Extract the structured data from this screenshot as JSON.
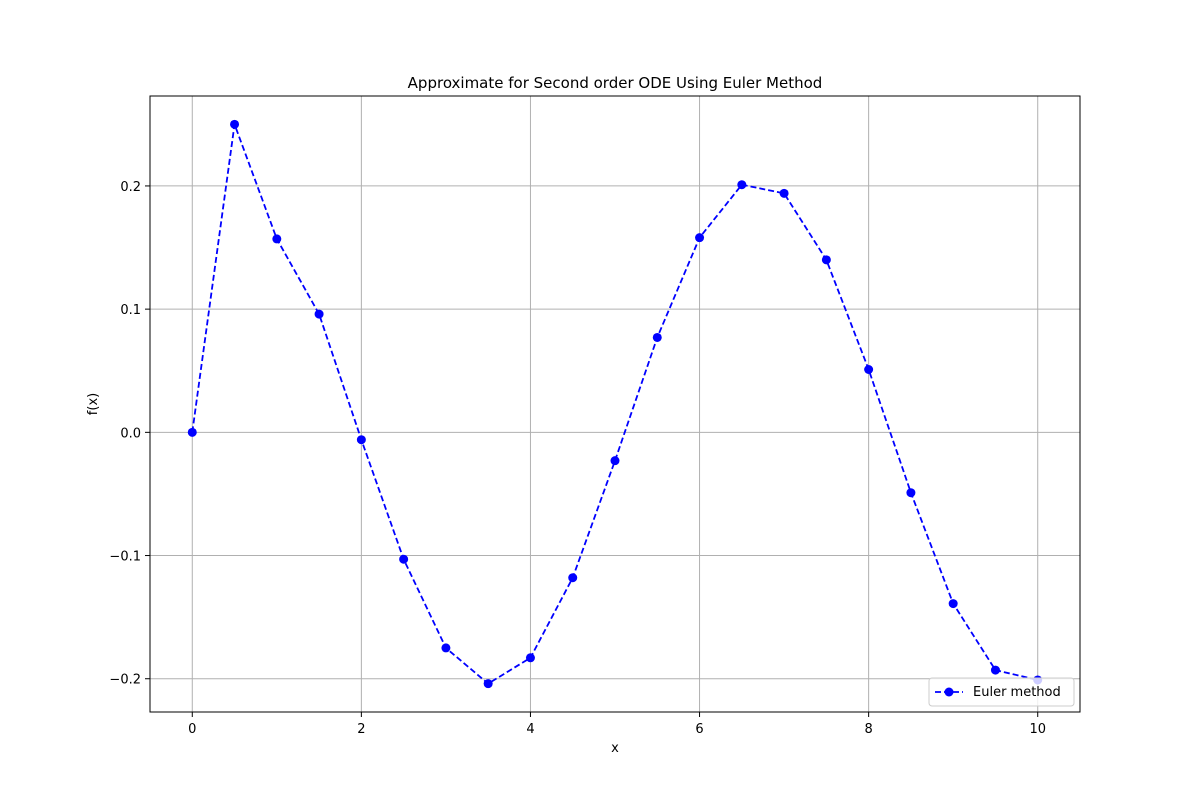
{
  "chart_data": {
    "type": "line",
    "title": "Approximate for Second order ODE Using Euler Method",
    "xlabel": "x",
    "ylabel": "f(x)",
    "xlim": [
      -0.5,
      10.5
    ],
    "ylim": [
      -0.227,
      0.273
    ],
    "xticks": [
      0,
      2,
      4,
      6,
      8,
      10
    ],
    "xtick_labels": [
      "0",
      "2",
      "4",
      "6",
      "8",
      "10"
    ],
    "yticks": [
      -0.2,
      -0.1,
      0.0,
      0.1,
      0.2
    ],
    "ytick_labels": [
      "−0.2",
      "−0.1",
      "0.0",
      "0.1",
      "0.2"
    ],
    "grid": true,
    "legend_position": "lower-right",
    "series": [
      {
        "name": "Euler method",
        "color": "#0000ff",
        "linestyle": "dashed",
        "marker": "circle",
        "x": [
          0,
          0.5,
          1,
          1.5,
          2,
          2.5,
          3,
          3.5,
          4,
          4.5,
          5,
          5.5,
          6,
          6.5,
          7,
          7.5,
          8,
          8.5,
          9,
          9.5,
          10
        ],
        "y": [
          0.0,
          0.25,
          0.157,
          0.096,
          -0.006,
          -0.103,
          -0.175,
          -0.204,
          -0.183,
          -0.118,
          -0.023,
          0.077,
          0.158,
          0.201,
          0.194,
          0.14,
          0.051,
          -0.049,
          -0.139,
          -0.193,
          -0.201
        ]
      }
    ]
  }
}
